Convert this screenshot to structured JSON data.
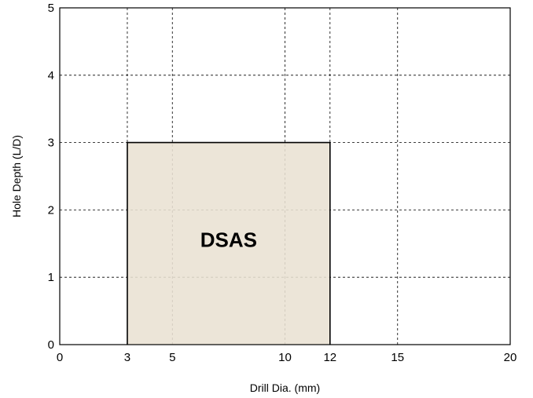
{
  "chart_data": {
    "type": "area",
    "title": "",
    "xlabel": "Drill Dia. (mm)",
    "ylabel": "Hole Depth (L/D)",
    "xlim": [
      0,
      20
    ],
    "ylim": [
      0,
      5
    ],
    "x_ticks": [
      0,
      3,
      5,
      10,
      12,
      15,
      20
    ],
    "y_ticks": [
      0,
      1,
      2,
      3,
      4,
      5
    ],
    "grid": true,
    "regions": [
      {
        "name": "DSAS",
        "x_range": [
          3,
          12
        ],
        "y_range": [
          0,
          3
        ],
        "fill": "#e9e1d3"
      }
    ]
  }
}
